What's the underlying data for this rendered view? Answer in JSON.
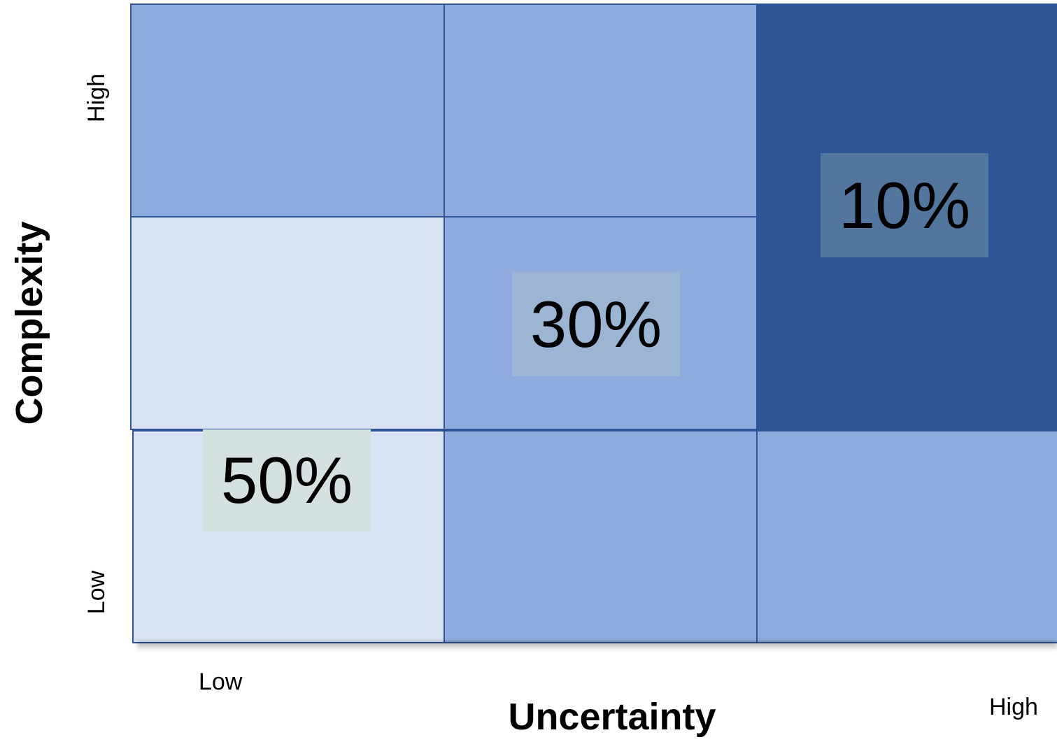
{
  "diagram": {
    "x_axis": {
      "title": "Uncertainty",
      "low_label": "Low",
      "high_label": "High"
    },
    "y_axis": {
      "title": "Complexity",
      "low_label": "Low",
      "high_label": "High"
    },
    "cells": [
      {
        "row": "top",
        "col": "left",
        "color": "#8faadc",
        "label": ""
      },
      {
        "row": "top",
        "col": "middle",
        "color": "#8faadc",
        "label": ""
      },
      {
        "row": "top",
        "col": "right",
        "color": "#2f5597",
        "label": ""
      },
      {
        "row": "middle",
        "col": "left",
        "color": "#dae3f3",
        "label": ""
      },
      {
        "row": "middle",
        "col": "middle",
        "color": "#8faadc",
        "label": ""
      },
      {
        "row": "middle",
        "col": "right",
        "color": "#2f5597",
        "label": ""
      },
      {
        "row": "bottom",
        "col": "left",
        "color": "#dae3f3",
        "label": ""
      },
      {
        "row": "bottom",
        "col": "middle",
        "color": "#8faadc",
        "label": ""
      },
      {
        "row": "bottom",
        "col": "right",
        "color": "#8faadc",
        "label": ""
      }
    ],
    "percentages": [
      {
        "value": "50%",
        "box_color": "#d5e1e1"
      },
      {
        "value": "30%",
        "box_color": "#9db5d4"
      },
      {
        "value": "10%",
        "box_color": "#52769e"
      }
    ]
  }
}
